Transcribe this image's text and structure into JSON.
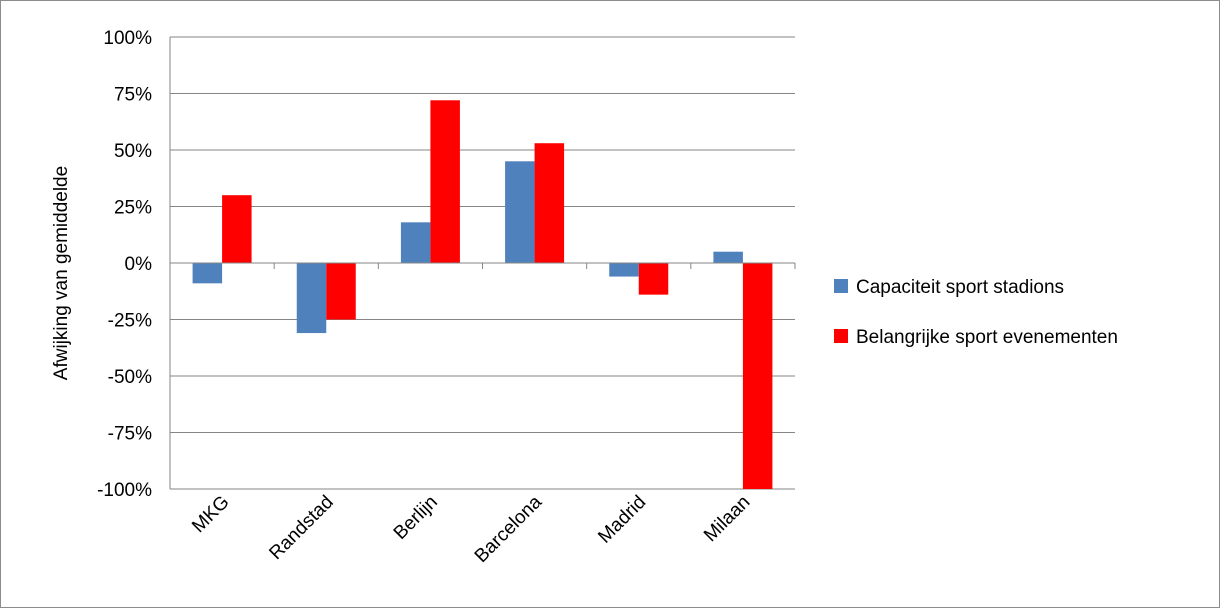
{
  "chart_data": {
    "type": "bar",
    "title": "",
    "xlabel": "",
    "ylabel": "Afwijking van  gemiddelde",
    "ylim": [
      -100,
      100
    ],
    "yticks": [
      100,
      75,
      50,
      25,
      0,
      -25,
      -50,
      -75,
      -100
    ],
    "ytick_labels": [
      "100%",
      "75%",
      "50%",
      "25%",
      "0%",
      "-25%",
      "-50%",
      "-75%",
      "-100%"
    ],
    "grid": true,
    "legend_position": "right",
    "categories": [
      "MKG",
      "Randstad",
      "Berlijn",
      "Barcelona",
      "Madrid",
      "Milaan"
    ],
    "series": [
      {
        "name": "Capaciteit sport stadions",
        "color": "#4f81bd",
        "values": [
          -9,
          -31,
          18,
          45,
          -6,
          5
        ]
      },
      {
        "name": "Belangrijke sport evenementen",
        "color": "#ff0000",
        "values": [
          30,
          -25,
          72,
          53,
          -14,
          -100
        ]
      }
    ]
  }
}
